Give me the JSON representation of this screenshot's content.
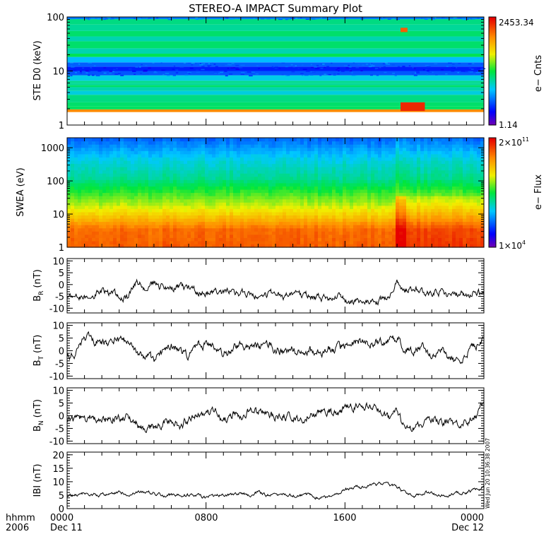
{
  "title": "STEREO-A IMPACT Summary Plot",
  "time_axis": {
    "row1_labels": [
      "hhmm",
      "0000",
      "0800",
      "1600",
      "0000"
    ],
    "row2_labels": [
      "2006",
      "Dec 11",
      "",
      "",
      "Dec 12"
    ],
    "range_hours": [
      0,
      24
    ],
    "major_ticks_hours": [
      0,
      8,
      16,
      24
    ],
    "minor_tick_step_hours": 1
  },
  "timestamp": "Wed Jun 20 10:36:38 2007",
  "colors": {
    "axis": "#000000",
    "trace": "#000000",
    "background": "#ffffff"
  },
  "chart_data": [
    {
      "type": "heatmap",
      "ylabel": "STE D0 (keV)",
      "yscale": "log",
      "ylim": [
        1,
        100
      ],
      "yticks": [
        "1",
        "10",
        "100"
      ],
      "colorbar": {
        "label": "e− Cnts",
        "max": "2453.34",
        "min": "1.14"
      },
      "bands_log10": [
        {
          "range": [
            0.24,
            0.29
          ],
          "level": 0.82
        },
        {
          "range": [
            0.29,
            0.35
          ],
          "level": 0.47
        },
        {
          "range": [
            0.35,
            0.42
          ],
          "level": 0.46
        },
        {
          "range": [
            0.42,
            0.56
          ],
          "level": 0.44
        },
        {
          "range": [
            0.56,
            0.63
          ],
          "level": 0.36
        },
        {
          "range": [
            0.63,
            0.7
          ],
          "level": 0.4
        },
        {
          "range": [
            0.7,
            0.74
          ],
          "level": 0.46
        },
        {
          "range": [
            0.74,
            0.78
          ],
          "level": 0.42
        },
        {
          "range": [
            0.78,
            0.82
          ],
          "level": 0.43
        },
        {
          "range": [
            0.82,
            0.92
          ],
          "level": 0.35
        },
        {
          "range": [
            0.92,
            1.0
          ],
          "level": 0.21
        },
        {
          "range": [
            1.0,
            1.08
          ],
          "level": 0.15
        },
        {
          "range": [
            1.08,
            1.16
          ],
          "level": 0.22
        },
        {
          "range": [
            1.16,
            1.26
          ],
          "level": 0.32
        },
        {
          "range": [
            1.26,
            1.32
          ],
          "level": 0.48
        },
        {
          "range": [
            1.32,
            1.42
          ],
          "level": 0.4
        },
        {
          "range": [
            1.42,
            1.55
          ],
          "level": 0.46
        },
        {
          "range": [
            1.55,
            1.64
          ],
          "level": 0.4
        },
        {
          "range": [
            1.64,
            1.74
          ],
          "level": 0.46
        },
        {
          "range": [
            1.74,
            1.86
          ],
          "level": 0.42
        },
        {
          "range": [
            1.86,
            1.96
          ],
          "level": 0.44
        },
        {
          "range": [
            1.96,
            2.0
          ],
          "level": 0.25
        }
      ],
      "features": [
        {
          "hours": [
            19.2,
            19.6
          ],
          "log10_range": [
            1.72,
            1.8
          ],
          "level": 0.88
        },
        {
          "hours": [
            19.2,
            20.6
          ],
          "log10_range": [
            0.26,
            0.42
          ],
          "level": 0.95
        }
      ]
    },
    {
      "type": "heatmap",
      "ylabel": "SWEA (eV)",
      "yscale": "log",
      "ylim": [
        1,
        2000
      ],
      "yticks": [
        "1",
        "10",
        "100",
        "1000"
      ],
      "colorbar": {
        "label": "e− Flux",
        "max": "2×10",
        "max_exp": "11",
        "min": "1×10",
        "min_exp": "4"
      },
      "profile_log10": [
        {
          "e": 0.0,
          "level": 0.88
        },
        {
          "e": 0.55,
          "level": 0.86
        },
        {
          "e": 0.9,
          "level": 0.74
        },
        {
          "e": 1.3,
          "level": 0.62
        },
        {
          "e": 1.7,
          "level": 0.52
        },
        {
          "e": 2.1,
          "level": 0.42
        },
        {
          "e": 2.6,
          "level": 0.36
        },
        {
          "e": 3.05,
          "level": 0.27
        },
        {
          "e": 3.3,
          "level": 0.22
        }
      ],
      "features": [
        {
          "hours": [
            19.0,
            24.0
          ],
          "shift": 0.05
        },
        {
          "hours": [
            19.0,
            19.5
          ],
          "shift": 0.1
        }
      ]
    },
    {
      "type": "line",
      "ylabel": "B",
      "ylabel_sub": "R",
      "ylabel_unit": "(nT)",
      "ylim": [
        -12,
        11
      ],
      "yticks": [
        -10,
        -5,
        0,
        5,
        10
      ],
      "x": [
        0,
        0.5,
        1,
        1.5,
        2,
        2.5,
        3,
        3.5,
        4,
        4.5,
        5,
        5.5,
        6,
        6.5,
        7,
        7.5,
        8,
        8.5,
        9,
        9.5,
        10,
        10.5,
        11,
        11.5,
        12,
        12.5,
        13,
        13.5,
        14,
        14.5,
        15,
        15.5,
        16,
        16.5,
        17,
        17.5,
        18,
        18.5,
        19,
        19.5,
        20,
        20.5,
        21,
        21.5,
        22,
        22.5,
        23,
        23.5,
        24
      ],
      "y": [
        -5,
        -5,
        -6,
        -4,
        -3,
        -4,
        -5,
        -6,
        1,
        -1,
        0,
        -1,
        -2,
        -1,
        -2,
        -3,
        -4,
        -3,
        -4,
        -3,
        -4,
        -4,
        -5,
        -4,
        -4,
        -5,
        -4,
        -5,
        -5,
        -5,
        -6,
        -5,
        -7,
        -8,
        -7,
        -8,
        -7,
        -6,
        1,
        -2,
        -1,
        -3,
        -4,
        -3,
        -5,
        -4,
        -5,
        -3,
        -4
      ],
      "noise": 2.2
    },
    {
      "type": "line",
      "ylabel": "B",
      "ylabel_sub": "T",
      "ylabel_unit": "(nT)",
      "ylim": [
        -11,
        11
      ],
      "yticks": [
        -10,
        -5,
        0,
        5,
        10
      ],
      "x": [
        0,
        0.5,
        1,
        1.5,
        2,
        2.5,
        3,
        3.5,
        4,
        4.5,
        5,
        5.5,
        6,
        6.5,
        7,
        7.5,
        8,
        8.5,
        9,
        9.5,
        10,
        10.5,
        11,
        11.5,
        12,
        12.5,
        13,
        13.5,
        14,
        14.5,
        15,
        15.5,
        16,
        16.5,
        17,
        17.5,
        18,
        18.5,
        19,
        19.5,
        20,
        20.5,
        21,
        21.5,
        22,
        22.5,
        23,
        23.5,
        24
      ],
      "y": [
        -2,
        -1,
        5,
        4,
        3,
        4,
        4,
        3,
        -1,
        -2,
        -4,
        -1,
        2,
        0,
        -2,
        3,
        2,
        1,
        -1,
        0,
        2,
        1,
        1,
        2,
        1,
        0,
        1,
        0,
        0,
        0,
        0,
        1,
        2,
        3,
        4,
        3,
        4,
        4,
        5,
        1,
        0,
        2,
        -2,
        1,
        -3,
        -5,
        0,
        2,
        4
      ],
      "noise": 2.4
    },
    {
      "type": "line",
      "ylabel": "B",
      "ylabel_sub": "N",
      "ylabel_unit": "(nT)",
      "ylim": [
        -11,
        11
      ],
      "yticks": [
        -10,
        -5,
        0,
        5,
        10
      ],
      "x": [
        0,
        0.5,
        1,
        1.5,
        2,
        2.5,
        3,
        3.5,
        4,
        4.5,
        5,
        5.5,
        6,
        6.5,
        7,
        7.5,
        8,
        8.5,
        9,
        9.5,
        10,
        10.5,
        11,
        11.5,
        12,
        12.5,
        13,
        13.5,
        14,
        14.5,
        15,
        15.5,
        16,
        16.5,
        17,
        17.5,
        18,
        18.5,
        19,
        19.5,
        20,
        20.5,
        21,
        21.5,
        22,
        22.5,
        23,
        23.5,
        24
      ],
      "y": [
        -2,
        -1,
        -1,
        0,
        -2,
        0,
        -1,
        -1,
        -3,
        -5,
        -4,
        -3,
        -1,
        -4,
        -1,
        1,
        0,
        2,
        -2,
        1,
        -1,
        2,
        1,
        0,
        -1,
        0,
        -1,
        -1,
        0,
        1,
        2,
        1,
        3,
        4,
        3,
        4,
        2,
        -1,
        1,
        -5,
        -4,
        -3,
        -1,
        -2,
        -3,
        -4,
        -3,
        -1,
        5
      ],
      "noise": 2.4
    },
    {
      "type": "line",
      "ylabel": "IBI",
      "ylabel_sub": "",
      "ylabel_unit": "(nT)",
      "ylim": [
        0,
        21
      ],
      "yticks": [
        0,
        5,
        10,
        15,
        20
      ],
      "x": [
        0,
        0.5,
        1,
        1.5,
        2,
        2.5,
        3,
        3.5,
        4,
        4.5,
        5,
        5.5,
        6,
        6.5,
        7,
        7.5,
        8,
        8.5,
        9,
        9.5,
        10,
        10.5,
        11,
        11.5,
        12,
        12.5,
        13,
        13.5,
        14,
        14.5,
        15,
        15.5,
        16,
        16.5,
        17,
        17.5,
        18,
        18.5,
        19,
        19.5,
        20,
        20.5,
        21,
        21.5,
        22,
        22.5,
        23,
        23.5,
        24
      ],
      "y": [
        5,
        5,
        6,
        5,
        5,
        6,
        6,
        5,
        6,
        6,
        6,
        5,
        5,
        5,
        5,
        5,
        4,
        5,
        5,
        5,
        6,
        5,
        6,
        5,
        5,
        5,
        5,
        5,
        5,
        4,
        4,
        5,
        7,
        8,
        8,
        9,
        9,
        9,
        8,
        6,
        5,
        6,
        6,
        5,
        5,
        6,
        6,
        7,
        8
      ],
      "noise": 0.9
    }
  ]
}
